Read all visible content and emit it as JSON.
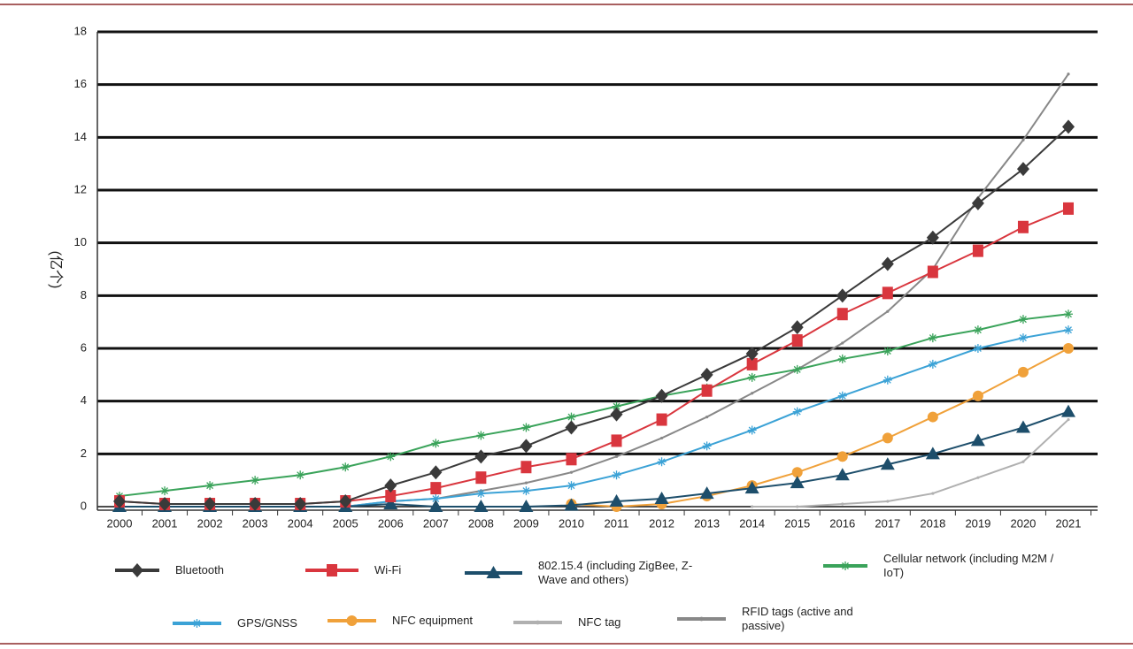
{
  "chart_data": {
    "type": "line",
    "y_label": "(亿个)",
    "categories": [
      "2000",
      "2001",
      "2002",
      "2003",
      "2004",
      "2005",
      "2006",
      "2007",
      "2008",
      "2009",
      "2010",
      "2011",
      "2012",
      "2013",
      "2014",
      "2015",
      "2016",
      "2017",
      "2018",
      "2019",
      "2020",
      "2021"
    ],
    "ylim": [
      0,
      18
    ],
    "yticks": [
      0,
      2,
      4,
      6,
      8,
      10,
      12,
      14,
      16,
      18
    ],
    "grid": true,
    "series": [
      {
        "name": "Bluetooth",
        "color": "#3a3a3a",
        "marker": "diamond",
        "values": [
          0.2,
          0.1,
          0.1,
          0.1,
          0.1,
          0.2,
          0.8,
          1.3,
          1.9,
          2.3,
          3.0,
          3.5,
          4.2,
          5.0,
          5.8,
          6.8,
          8.0,
          9.2,
          10.2,
          11.5,
          12.8,
          14.4
        ]
      },
      {
        "name": "Wi-Fi",
        "color": "#d9363e",
        "marker": "square",
        "values": [
          0.2,
          0.1,
          0.1,
          0.1,
          0.1,
          0.2,
          0.4,
          0.7,
          1.1,
          1.5,
          1.8,
          2.5,
          3.3,
          4.4,
          5.4,
          6.3,
          7.3,
          8.1,
          8.9,
          9.7,
          10.6,
          11.3
        ]
      },
      {
        "name": "802.15.4 (including ZigBee, Z-Wave and others)",
        "color": "#1d4e6b",
        "marker": "triangle",
        "values": [
          0,
          0,
          0,
          0,
          0,
          0,
          0.1,
          0,
          0,
          0,
          0.05,
          0.2,
          0.3,
          0.5,
          0.7,
          0.9,
          1.2,
          1.6,
          2.0,
          2.5,
          3.0,
          3.6
        ]
      },
      {
        "name": "Cellular network (including M2M / IoT)",
        "color": "#3aa35a",
        "marker": "star",
        "values": [
          0.4,
          0.6,
          0.8,
          1.0,
          1.2,
          1.5,
          1.9,
          2.4,
          2.7,
          3.0,
          3.4,
          3.8,
          4.2,
          4.5,
          4.9,
          5.2,
          5.6,
          5.9,
          6.4,
          6.7,
          7.1,
          7.3
        ]
      },
      {
        "name": "GPS/GNSS",
        "color": "#3ba2d6",
        "marker": "star",
        "values": [
          0,
          0,
          0,
          0,
          0,
          0,
          0.2,
          0.3,
          0.5,
          0.6,
          0.8,
          1.2,
          1.7,
          2.3,
          2.9,
          3.6,
          4.2,
          4.8,
          5.4,
          6.0,
          6.4,
          6.7
        ]
      },
      {
        "name": "NFC equipment",
        "color": "#f0a13a",
        "marker": "circle",
        "values": [
          null,
          null,
          null,
          null,
          null,
          null,
          null,
          null,
          null,
          null,
          0.1,
          0,
          0.1,
          0.4,
          0.8,
          1.3,
          1.9,
          2.6,
          3.4,
          4.2,
          5.1,
          6.0
        ]
      },
      {
        "name": "NFC tag",
        "color": "#b0b0b0",
        "marker": "dot",
        "values": [
          null,
          null,
          null,
          null,
          null,
          null,
          null,
          null,
          null,
          null,
          null,
          null,
          null,
          null,
          0,
          0,
          0.1,
          0.2,
          0.5,
          1.1,
          1.7,
          3.3
        ]
      },
      {
        "name": "RFID tags (active and passive)",
        "color": "#888888",
        "marker": "dot",
        "values": [
          0,
          0,
          0,
          0,
          0,
          0,
          0.2,
          0.3,
          0.6,
          0.9,
          1.3,
          1.9,
          2.6,
          3.4,
          4.3,
          5.2,
          6.2,
          7.4,
          9.0,
          11.7,
          13.9,
          16.4
        ]
      }
    ]
  }
}
